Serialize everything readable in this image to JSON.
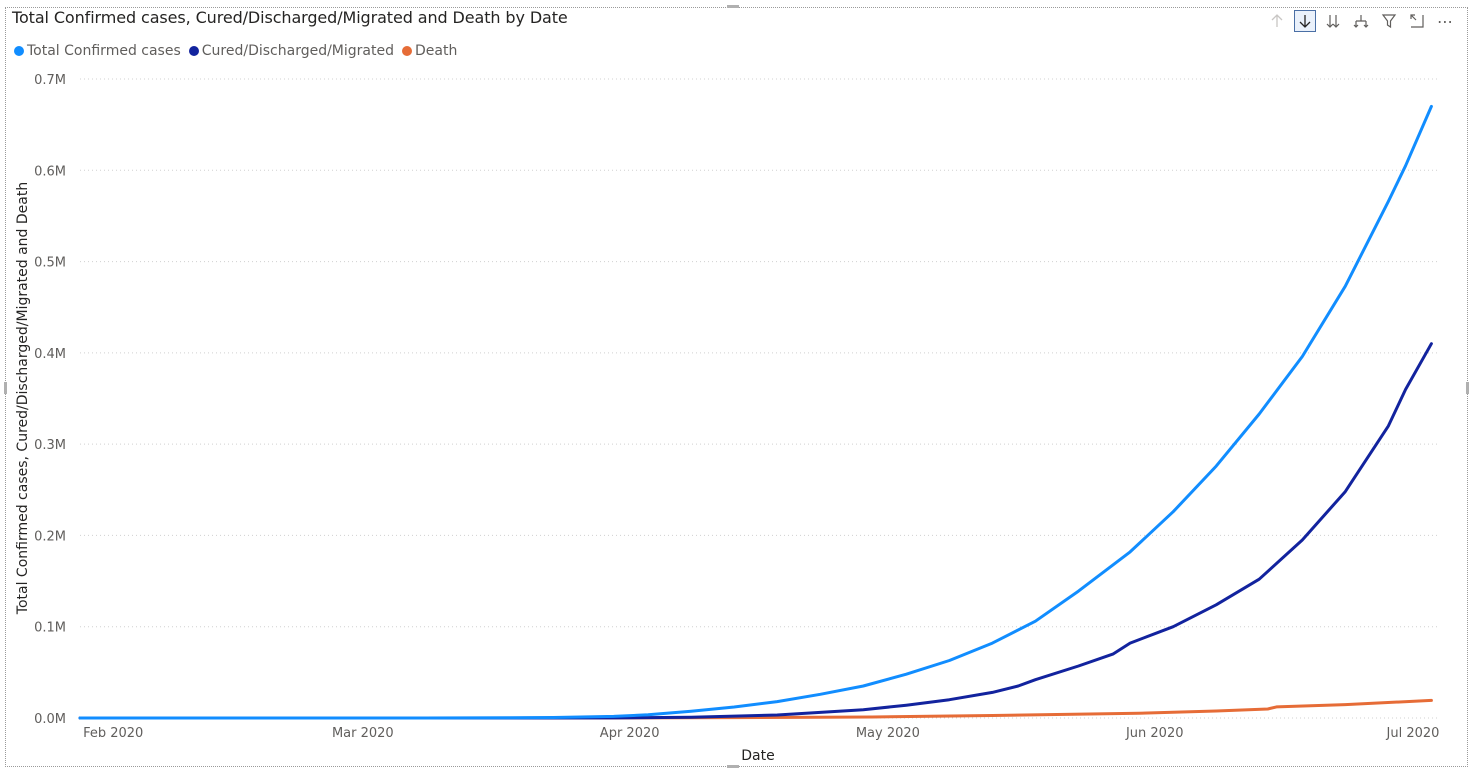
{
  "title": "Total Confirmed cases, Cured/Discharged/Migrated and Death by Date",
  "toolbar": {
    "icons": [
      "arrow-up-icon",
      "drill-down-icon",
      "expand-all-icon",
      "hierarchy-icon",
      "filter-icon",
      "focus-mode-icon",
      "more-options-icon"
    ],
    "more_label": "⋯"
  },
  "legend": [
    {
      "name": "Total Confirmed cases",
      "color": "#118DFF"
    },
    {
      "name": "Cured/Discharged/Migrated",
      "color": "#12239E"
    },
    {
      "name": "Death",
      "color": "#E66C37"
    }
  ],
  "chart_data": {
    "type": "line",
    "title": "Total Confirmed cases, Cured/Discharged/Migrated and Death by Date",
    "xlabel": "Date",
    "ylabel": "Total Confirmed cases, Cured/Discharged/Migrated and Death",
    "x_ticks": [
      {
        "label": "Feb 2020",
        "date": "2020-02-01"
      },
      {
        "label": "Mar 2020",
        "date": "2020-03-01"
      },
      {
        "label": "Apr 2020",
        "date": "2020-04-01"
      },
      {
        "label": "May 2020",
        "date": "2020-05-01"
      },
      {
        "label": "Jun 2020",
        "date": "2020-06-01"
      },
      {
        "label": "Jul 2020",
        "date": "2020-07-01"
      }
    ],
    "y_ticks": [
      {
        "label": "0.0M",
        "value": 0
      },
      {
        "label": "0.1M",
        "value": 100000
      },
      {
        "label": "0.2M",
        "value": 200000
      },
      {
        "label": "0.3M",
        "value": 300000
      },
      {
        "label": "0.4M",
        "value": 400000
      },
      {
        "label": "0.5M",
        "value": 500000
      },
      {
        "label": "0.6M",
        "value": 600000
      },
      {
        "label": "0.7M",
        "value": 700000
      }
    ],
    "xlim": [
      "2020-01-30",
      "2020-07-06"
    ],
    "ylim": [
      0,
      700000
    ],
    "grid": true,
    "legend_position": "top-left",
    "series": [
      {
        "name": "Total Confirmed cases",
        "color": "#118DFF",
        "points": [
          [
            "2020-01-30",
            1
          ],
          [
            "2020-02-15",
            3
          ],
          [
            "2020-03-01",
            3
          ],
          [
            "2020-03-10",
            50
          ],
          [
            "2020-03-20",
            250
          ],
          [
            "2020-03-25",
            600
          ],
          [
            "2020-04-01",
            1800
          ],
          [
            "2020-04-05",
            3500
          ],
          [
            "2020-04-10",
            7500
          ],
          [
            "2020-04-15",
            12000
          ],
          [
            "2020-04-20",
            18000
          ],
          [
            "2020-04-25",
            26000
          ],
          [
            "2020-04-30",
            35000
          ],
          [
            "2020-05-05",
            48000
          ],
          [
            "2020-05-10",
            63000
          ],
          [
            "2020-05-15",
            82000
          ],
          [
            "2020-05-20",
            106000
          ],
          [
            "2020-05-25",
            139000
          ],
          [
            "2020-05-31",
            182000
          ],
          [
            "2020-06-05",
            226000
          ],
          [
            "2020-06-10",
            276000
          ],
          [
            "2020-06-15",
            333000
          ],
          [
            "2020-06-20",
            396000
          ],
          [
            "2020-06-25",
            473000
          ],
          [
            "2020-06-30",
            566000
          ],
          [
            "2020-07-02",
            605000
          ],
          [
            "2020-07-05",
            670000
          ]
        ]
      },
      {
        "name": "Cured/Discharged/Migrated",
        "color": "#12239E",
        "points": [
          [
            "2020-01-30",
            0
          ],
          [
            "2020-03-01",
            3
          ],
          [
            "2020-03-20",
            20
          ],
          [
            "2020-04-01",
            150
          ],
          [
            "2020-04-10",
            800
          ],
          [
            "2020-04-20",
            3300
          ],
          [
            "2020-04-30",
            9000
          ],
          [
            "2020-05-05",
            14000
          ],
          [
            "2020-05-10",
            20000
          ],
          [
            "2020-05-15",
            28000
          ],
          [
            "2020-05-18",
            35000
          ],
          [
            "2020-05-20",
            42000
          ],
          [
            "2020-05-25",
            57000
          ],
          [
            "2020-05-29",
            70000
          ],
          [
            "2020-05-31",
            82000
          ],
          [
            "2020-06-05",
            100000
          ],
          [
            "2020-06-10",
            124000
          ],
          [
            "2020-06-15",
            152000
          ],
          [
            "2020-06-20",
            195000
          ],
          [
            "2020-06-25",
            248000
          ],
          [
            "2020-06-30",
            320000
          ],
          [
            "2020-07-02",
            360000
          ],
          [
            "2020-07-05",
            410000
          ]
        ]
      },
      {
        "name": "Death",
        "color": "#E66C37",
        "points": [
          [
            "2020-01-30",
            0
          ],
          [
            "2020-03-15",
            2
          ],
          [
            "2020-04-01",
            50
          ],
          [
            "2020-04-15",
            400
          ],
          [
            "2020-05-01",
            1100
          ],
          [
            "2020-05-15",
            2700
          ],
          [
            "2020-06-01",
            5200
          ],
          [
            "2020-06-10",
            7700
          ],
          [
            "2020-06-16",
            9900
          ],
          [
            "2020-06-17",
            12200
          ],
          [
            "2020-06-25",
            14700
          ],
          [
            "2020-07-05",
            19300
          ]
        ]
      }
    ]
  }
}
